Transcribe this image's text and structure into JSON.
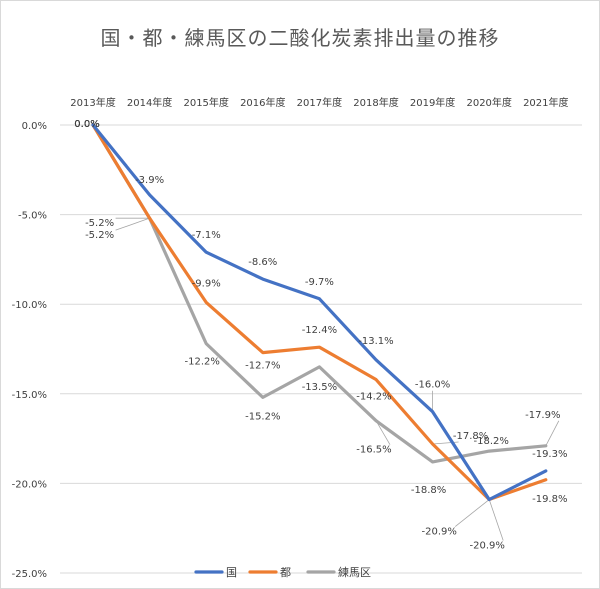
{
  "chart_data": {
    "type": "line",
    "title": "国・都・練馬区の二酸化炭素排出量の推移",
    "categories": [
      "2013年度",
      "2014年度",
      "2015年度",
      "2016年度",
      "2017年度",
      "2018年度",
      "2019年度",
      "2020年度",
      "2021年度"
    ],
    "ylim": [
      -25,
      0
    ],
    "yticks": [
      "0.0%",
      "-5.0%",
      "-10.0%",
      "-15.0%",
      "-20.0%",
      "-25.0%"
    ],
    "grid": true,
    "legend_position": "bottom",
    "series": [
      {
        "name": "国",
        "color": "#4472c4",
        "values": [
          0.0,
          -3.9,
          -7.1,
          -8.6,
          -9.7,
          -13.1,
          -16.0,
          -20.9,
          -19.3
        ],
        "labels": [
          "0.0%",
          "-3.9%",
          "-7.1%",
          "-8.6%",
          "-9.7%",
          "-13.1%",
          "-16.0%",
          "-20.9%",
          "-19.3%"
        ]
      },
      {
        "name": "都",
        "color": "#ed7d31",
        "values": [
          0.0,
          -5.2,
          -9.9,
          -12.7,
          -12.4,
          -14.2,
          -17.8,
          -20.9,
          -19.8
        ],
        "labels": [
          "0.0%",
          "-5.2%",
          "-9.9%",
          "-12.7%",
          "-12.4%",
          "-14.2%",
          "-17.8%",
          "-20.9%",
          "-19.8%"
        ]
      },
      {
        "name": "練馬区",
        "color": "#a5a5a5",
        "values": [
          0.0,
          -5.2,
          -12.2,
          -15.2,
          -13.5,
          -16.5,
          -18.8,
          -18.2,
          -17.9
        ],
        "labels": [
          "0.0%",
          "-5.2%",
          "-12.2%",
          "-15.2%",
          "-13.5%",
          "-16.5%",
          "-18.8%",
          "-18.2%",
          "-17.9%"
        ]
      }
    ]
  }
}
